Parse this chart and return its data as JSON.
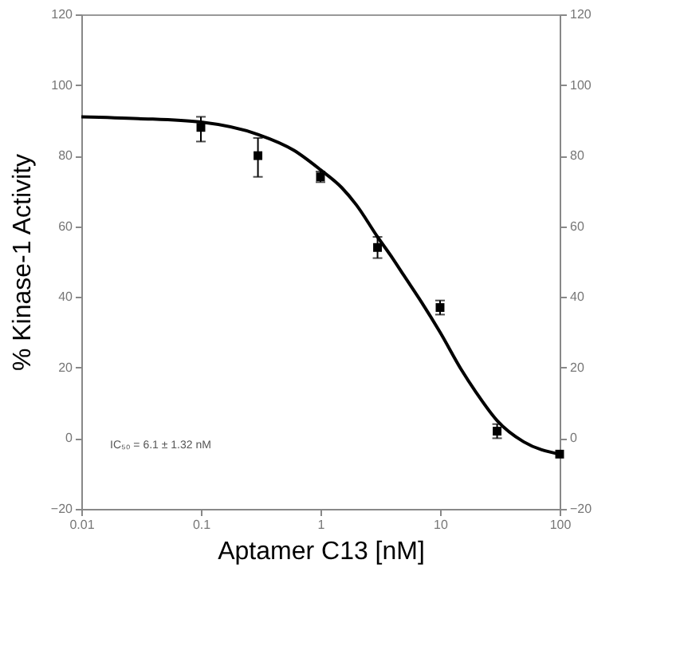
{
  "chart_data": {
    "type": "scatter",
    "xlabel": "Aptamer C13 [nM]",
    "ylabel": "% Kinase-1 Activity",
    "log": "x",
    "xlim": [
      0.01,
      100
    ],
    "xticks": [
      0.01,
      0.1,
      1,
      10,
      100
    ],
    "ylim": [
      -20,
      120
    ],
    "yticks": [
      -20,
      0,
      20,
      40,
      60,
      80,
      100,
      120
    ],
    "y2lim": [
      -20,
      120
    ],
    "y2ticks": [
      -20,
      0,
      20,
      40,
      60,
      80,
      100,
      120
    ],
    "grid": false,
    "annotations": [
      "IC₅₀ = 6.1 ± 1.32 nM"
    ],
    "series": [
      {
        "color": "#000000",
        "marker": "square",
        "x": [
          0.1,
          0.3,
          1,
          3,
          10,
          30,
          100
        ],
        "values": [
          88,
          80,
          74,
          54,
          37,
          2,
          -4.5
        ],
        "errors": [
          [
            84,
            91
          ],
          [
            74,
            85
          ],
          [
            72.5,
            75.5
          ],
          [
            51,
            57
          ],
          [
            35,
            39
          ],
          [
            0,
            4
          ],
          null
        ]
      },
      {
        "type": "line",
        "color": "#000000",
        "marker": "none",
        "line_style": "solid",
        "x": [
          0.01,
          0.03,
          0.1,
          0.3,
          0.6,
          1,
          1.5,
          2,
          3,
          4,
          5,
          7,
          10,
          15,
          20,
          30,
          50,
          100
        ],
        "values": [
          91,
          90.5,
          89.5,
          86,
          81.5,
          76,
          71,
          66,
          57,
          51,
          46,
          38.5,
          30,
          19.5,
          13,
          5,
          -1,
          -4.5
        ]
      }
    ]
  }
}
